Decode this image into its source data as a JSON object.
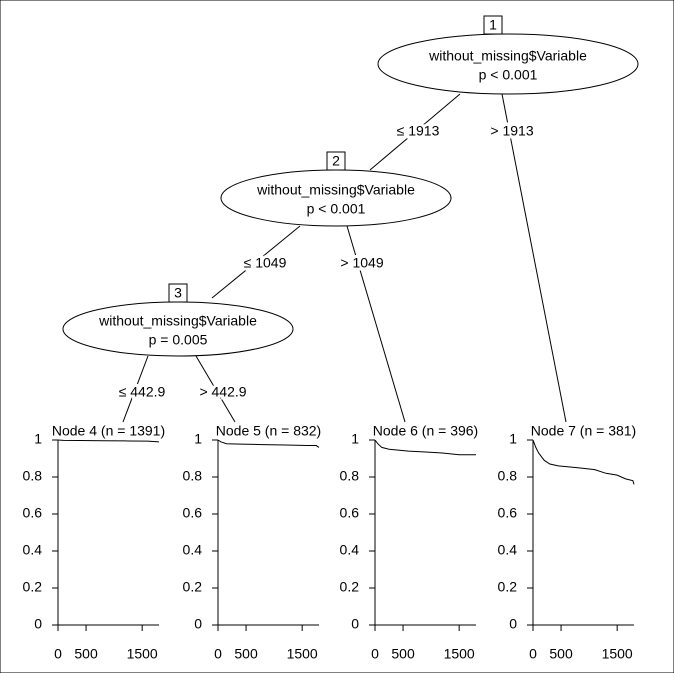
{
  "tree": {
    "nodes": [
      {
        "id": "1",
        "variable": "without_missing$Variable",
        "p": "p < 0.001"
      },
      {
        "id": "2",
        "variable": "without_missing$Variable",
        "p": "p < 0.001"
      },
      {
        "id": "3",
        "variable": "without_missing$Variable",
        "p": "p = 0.005"
      }
    ],
    "edges": [
      {
        "label": "≤ 1913"
      },
      {
        "label": "> 1913"
      },
      {
        "label": "≤ 1049"
      },
      {
        "label": "> 1049"
      },
      {
        "label": "≤ 442.9"
      },
      {
        "label": "> 442.9"
      }
    ]
  },
  "chart_data": [
    {
      "type": "line",
      "title": "Node 4 (n = 1391)",
      "x": [
        0,
        100,
        400,
        800,
        1200,
        1600,
        1800
      ],
      "values": [
        1,
        0.998,
        0.997,
        0.996,
        0.995,
        0.994,
        0.99
      ],
      "xlim": [
        0,
        1800
      ],
      "ylim": [
        0,
        1
      ],
      "xticks": [
        0,
        500,
        1500
      ],
      "yticks": [
        0,
        0.2,
        0.4,
        0.6,
        0.8,
        1
      ],
      "color": "#000000"
    },
    {
      "type": "line",
      "title": "Node 5 (n = 832)",
      "x": [
        0,
        50,
        150,
        400,
        800,
        1200,
        1600,
        1750,
        1800
      ],
      "values": [
        1,
        0.99,
        0.98,
        0.978,
        0.975,
        0.973,
        0.97,
        0.97,
        0.96
      ],
      "xlim": [
        0,
        1800
      ],
      "ylim": [
        0,
        1
      ],
      "xticks": [
        0,
        500,
        1500
      ],
      "yticks": [
        0,
        0.2,
        0.4,
        0.6,
        0.8,
        1
      ],
      "color": "#000000"
    },
    {
      "type": "line",
      "title": "Node 6 (n = 396)",
      "x": [
        0,
        50,
        120,
        250,
        600,
        900,
        1200,
        1500,
        1800
      ],
      "values": [
        1,
        0.98,
        0.96,
        0.95,
        0.94,
        0.935,
        0.93,
        0.92,
        0.92
      ],
      "xlim": [
        0,
        1800
      ],
      "ylim": [
        0,
        1
      ],
      "xticks": [
        0,
        500,
        1500
      ],
      "yticks": [
        0,
        0.2,
        0.4,
        0.6,
        0.8,
        1
      ],
      "color": "#000000"
    },
    {
      "type": "line",
      "title": "Node 7 (n = 381)",
      "x": [
        0,
        50,
        100,
        200,
        300,
        450,
        800,
        1100,
        1300,
        1500,
        1650,
        1780,
        1800
      ],
      "values": [
        1,
        0.96,
        0.93,
        0.89,
        0.87,
        0.86,
        0.85,
        0.84,
        0.82,
        0.81,
        0.79,
        0.78,
        0.76
      ],
      "xlim": [
        0,
        1800
      ],
      "ylim": [
        0,
        1
      ],
      "xticks": [
        0,
        500,
        1500
      ],
      "yticks": [
        0,
        0.2,
        0.4,
        0.6,
        0.8,
        1
      ],
      "color": "#000000"
    }
  ]
}
